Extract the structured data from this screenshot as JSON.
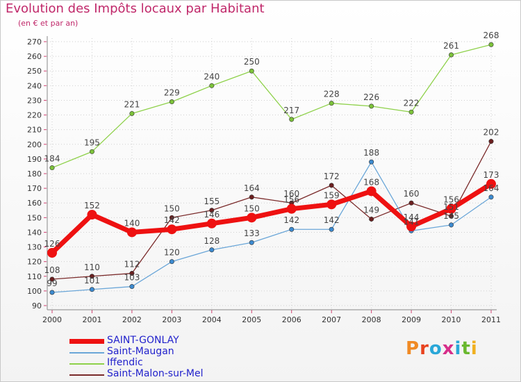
{
  "title": "Evolution des Impôts locaux par Habitant",
  "subtitle": "(en € et par an)",
  "logo": {
    "text": "Proxiti",
    "letters": [
      "P",
      "r",
      "o",
      "x",
      "i",
      "t",
      "i"
    ]
  },
  "colors": {
    "title": "#c0286a",
    "logo": [
      "#f08a24",
      "#e8431f",
      "#2aa7d8",
      "#d62e8a",
      "#2aa7d8",
      "#6ab82e",
      "#f0b020"
    ]
  },
  "chart_data": {
    "type": "line",
    "title": "Evolution des Impôts locaux par Habitant",
    "subtitle": "(en € et par an)",
    "xlabel": "",
    "ylabel": "",
    "ylim": [
      90,
      275
    ],
    "yticks": [
      90,
      100,
      110,
      120,
      130,
      140,
      150,
      160,
      170,
      180,
      190,
      200,
      210,
      220,
      230,
      240,
      250,
      260,
      270
    ],
    "x": [
      "2000",
      "2001",
      "2002",
      "2003",
      "2004",
      "2005",
      "2006",
      "2007",
      "2008",
      "2009",
      "2010",
      "2011"
    ],
    "legend_position": "bottom-left",
    "grid": true,
    "series": [
      {
        "name": "Iffendic",
        "color": "#8ed14a",
        "point_color": "#7cc23a",
        "width": 1.3,
        "radius": 3.2,
        "values": [
          184,
          195,
          221,
          229,
          240,
          250,
          217,
          228,
          226,
          222,
          261,
          268
        ]
      },
      {
        "name": "Saint-Malon-sur-Mel",
        "color": "#7a2a2a",
        "point_color": "#6b1f1f",
        "width": 1.3,
        "radius": 3.2,
        "values": [
          108,
          110,
          112,
          150,
          155,
          164,
          160,
          172,
          149,
          160,
          151,
          202
        ]
      },
      {
        "name": "Saint-Maugan",
        "color": "#6aa6d8",
        "point_color": "#3d8bd0",
        "width": 1.3,
        "radius": 3.2,
        "values": [
          99,
          101,
          103,
          120,
          128,
          133,
          142,
          142,
          188,
          141,
          145,
          164
        ]
      },
      {
        "name": "SAINT-GONLAY",
        "color": "#ee1111",
        "point_color": "#ee1111",
        "width": 7,
        "radius": 7,
        "values": [
          126,
          152,
          140,
          142,
          146,
          150,
          156,
          159,
          168,
          144,
          156,
          173
        ]
      }
    ],
    "legend": [
      "SAINT-GONLAY",
      "Saint-Maugan",
      "Iffendic",
      "Saint-Malon-sur-Mel"
    ]
  }
}
